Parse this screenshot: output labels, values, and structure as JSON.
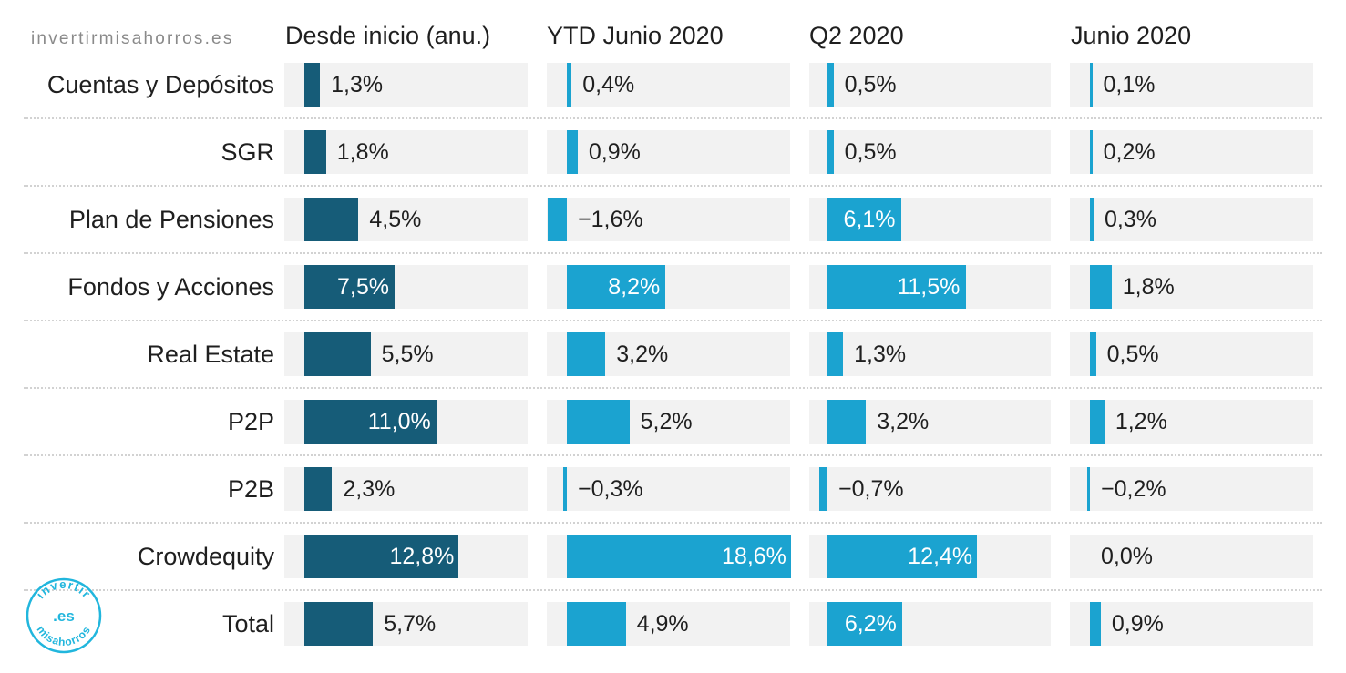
{
  "source": "invertirmisahorros.es",
  "logo": {
    "top": "invertir",
    "center": ".es",
    "bottom": "misahorros"
  },
  "colors": {
    "dark": "#165c78",
    "light": "#1ba3d0",
    "track": "#f2f2f2",
    "logo": "#21b6dd"
  },
  "chart_data": {
    "type": "bar",
    "orientation": "horizontal",
    "categories": [
      "Cuentas y Depósitos",
      "SGR",
      "Plan de Pensiones",
      "Fondos y Acciones",
      "Real Estate",
      "P2P",
      "P2B",
      "Crowdequity",
      "Total"
    ],
    "series": [
      {
        "name": "Desde inicio (anu.)",
        "labels": [
          "1,3%",
          "1,8%",
          "4,5%",
          "7,5%",
          "5,5%",
          "11,0%",
          "2,3%",
          "12,8%",
          "5,7%"
        ],
        "values": [
          1.3,
          1.8,
          4.5,
          7.5,
          5.5,
          11.0,
          2.3,
          12.8,
          5.7
        ]
      },
      {
        "name": "YTD Junio 2020",
        "labels": [
          "0,4%",
          "0,9%",
          "−1,6%",
          "8,2%",
          "3,2%",
          "5,2%",
          "−0,3%",
          "18,6%",
          "4,9%"
        ],
        "values": [
          0.4,
          0.9,
          -1.6,
          8.2,
          3.2,
          5.2,
          -0.3,
          18.6,
          4.9
        ]
      },
      {
        "name": "Q2 2020",
        "labels": [
          "0,5%",
          "0,5%",
          "6,1%",
          "11,5%",
          "1,3%",
          "3,2%",
          "−0,7%",
          "12,4%",
          "6,2%"
        ],
        "values": [
          0.5,
          0.5,
          6.1,
          11.5,
          1.3,
          3.2,
          -0.7,
          12.4,
          6.2
        ]
      },
      {
        "name": "Junio 2020",
        "labels": [
          "0,1%",
          "0,2%",
          "0,3%",
          "1,8%",
          "0,5%",
          "1,2%",
          "−0,2%",
          "0,0%",
          "0,9%"
        ],
        "values": [
          0.1,
          0.2,
          0.3,
          1.8,
          0.5,
          1.2,
          -0.2,
          0.0,
          0.9
        ]
      }
    ]
  }
}
